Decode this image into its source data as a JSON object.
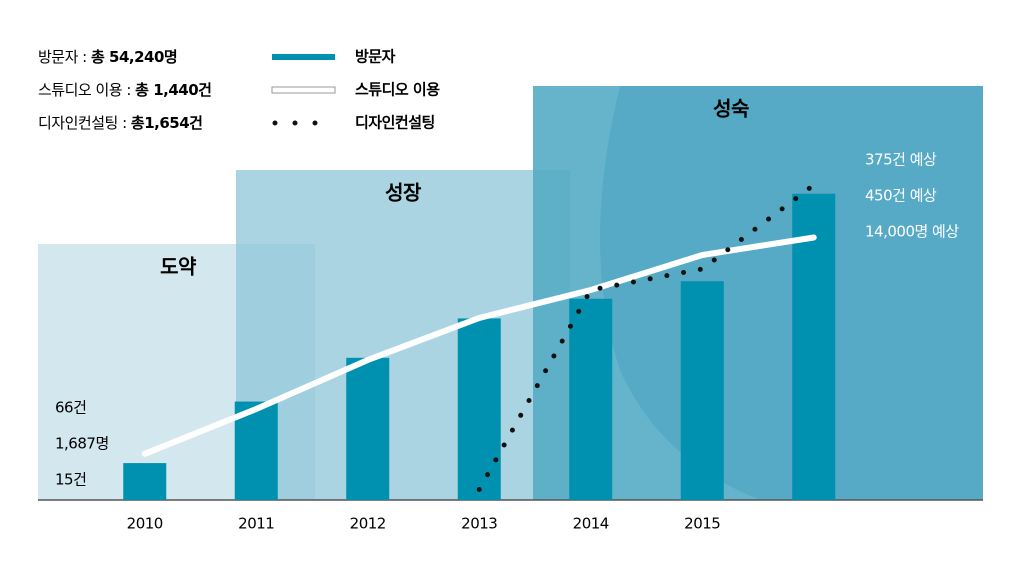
{
  "chart_data": {
    "type": "bar",
    "summary": [
      {
        "label": "방문자 : ",
        "value": "총 54,240명"
      },
      {
        "label": "스튜디오 이용 : ",
        "value": "총 1,440건"
      },
      {
        "label": "디자인컨설팅 : ",
        "value": "총1,654건"
      }
    ],
    "phases": [
      "도약",
      "성장",
      "성숙"
    ],
    "categories": [
      "2010",
      "2011",
      "2012",
      "2013",
      "2014",
      "2015",
      null
    ],
    "series": [
      {
        "name": "방문자",
        "type": "bar",
        "color": "#0090b0",
        "values": [
          1687,
          4500,
          6500,
          8300,
          9200,
          10000,
          14000
        ]
      },
      {
        "name": "스튜디오 이용",
        "type": "line",
        "axis": "y2",
        "color": "#ffffff",
        "values": [
          66,
          130,
          200,
          260,
          300,
          350,
          375
        ]
      },
      {
        "name": "디자인컨설팅",
        "type": "dotted",
        "axis": "y2",
        "color": "#111111",
        "values": [
          null,
          null,
          null,
          15,
          300,
          330,
          450
        ]
      }
    ],
    "start_labels": [
      "66건",
      "1,687명",
      "15건"
    ],
    "end_labels": [
      "375건 예상",
      "450건 예상",
      "14,000명 예상"
    ],
    "ylim": [
      0,
      16000
    ],
    "y2lim": [
      0,
      500
    ]
  }
}
